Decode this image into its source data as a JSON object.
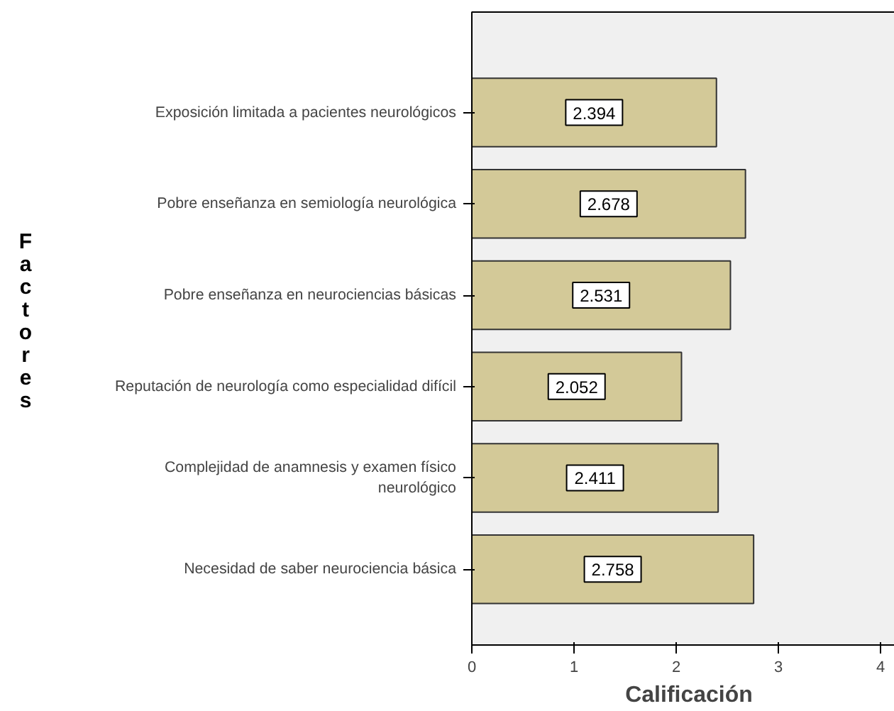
{
  "chart_data": {
    "type": "bar",
    "orientation": "horizontal",
    "categories": [
      "Exposición limitada a pacientes neurológicos",
      "Pobre enseñanza en semiología neurológica",
      "Pobre enseñanza en neurociencias básicas",
      "Reputación de neurología como especialidad difícil",
      "Complejidad de anamnesis y examen físico\nneurológico",
      "Necesidad de saber neurociencia básica"
    ],
    "values": [
      2.394,
      2.678,
      2.531,
      2.052,
      2.411,
      2.758
    ],
    "color": "#d3c998",
    "data_labels": true,
    "xlabel": "Calificación",
    "ylabel": "Factores",
    "xlim": [
      0,
      4.25
    ],
    "xticks": [
      0,
      1,
      2,
      3,
      4
    ],
    "grid": false,
    "legend": false
  }
}
